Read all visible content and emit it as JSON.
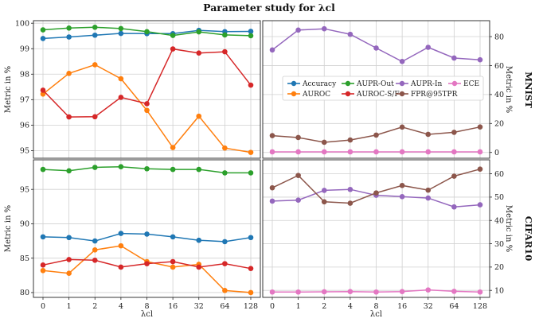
{
  "title": "Parameter study for λcl",
  "row_labels": [
    "MNIST",
    "CIFAR10"
  ],
  "chart_data": [
    {
      "type": "line",
      "panel": "MNIST-left",
      "title": "Parameter study for λcl",
      "xlabel": "",
      "ylabel": "Metric in %",
      "categories": [
        "0",
        "1",
        "2",
        "4",
        "8",
        "16",
        "32",
        "64",
        "128"
      ],
      "ylim": [
        94.7,
        100.1
      ],
      "yticks": [
        95,
        96,
        97,
        98,
        99,
        100
      ],
      "grid": true,
      "series": [
        {
          "name": "Accuracy",
          "color": "#1f77b4",
          "values": [
            99.4,
            99.46,
            99.53,
            99.6,
            99.59,
            99.59,
            99.72,
            99.67,
            99.68
          ]
        },
        {
          "name": "AUPR-Out",
          "color": "#2ca02c",
          "values": [
            99.74,
            99.81,
            99.84,
            99.79,
            99.67,
            99.52,
            99.66,
            99.54,
            99.51
          ]
        },
        {
          "name": "AUROC",
          "color": "#ff7f0e",
          "values": [
            97.22,
            98.03,
            98.37,
            97.82,
            96.58,
            95.12,
            96.35,
            95.1,
            94.93
          ]
        },
        {
          "name": "AUROC-S/F",
          "color": "#d62728",
          "values": [
            97.37,
            96.32,
            96.33,
            97.09,
            96.84,
            98.99,
            98.83,
            98.88,
            97.57
          ]
        }
      ]
    },
    {
      "type": "line",
      "panel": "MNIST-right",
      "xlabel": "",
      "ylabel": "Metric in %",
      "categories": [
        "0",
        "1",
        "2",
        "4",
        "8",
        "16",
        "32",
        "64",
        "128"
      ],
      "ylim": [
        -4,
        91
      ],
      "yticks": [
        0,
        20,
        40,
        60,
        80
      ],
      "grid": true,
      "legend": "center",
      "series": [
        {
          "name": "AUPR-In",
          "color": "#9467bd",
          "values": [
            70.8,
            84.5,
            85.4,
            81.6,
            72.1,
            62.8,
            72.6,
            65.2,
            64.0
          ]
        },
        {
          "name": "ECE",
          "color": "#e377c2",
          "values": [
            0.4,
            0.4,
            0.4,
            0.4,
            0.4,
            0.4,
            0.4,
            0.4,
            0.4
          ]
        },
        {
          "name": "FPR@95TPR",
          "color": "#8c564b",
          "values": [
            11.6,
            10.3,
            7.0,
            8.6,
            12.0,
            17.5,
            12.5,
            13.9,
            17.6
          ]
        }
      ]
    },
    {
      "type": "line",
      "panel": "CIFAR10-left",
      "xlabel": "λcl",
      "ylabel": "Metric in %",
      "categories": [
        "0",
        "1",
        "2",
        "4",
        "8",
        "16",
        "32",
        "64",
        "128"
      ],
      "ylim": [
        79.3,
        99.3
      ],
      "yticks": [
        80,
        85,
        90,
        95
      ],
      "grid": true,
      "series": [
        {
          "name": "Accuracy",
          "color": "#1f77b4",
          "values": [
            88.1,
            88.0,
            87.5,
            88.6,
            88.5,
            88.1,
            87.6,
            87.4,
            88.0
          ]
        },
        {
          "name": "AUPR-Out",
          "color": "#2ca02c",
          "values": [
            97.9,
            97.7,
            98.2,
            98.3,
            98.0,
            97.9,
            97.9,
            97.4,
            97.4
          ]
        },
        {
          "name": "AUROC",
          "color": "#ff7f0e",
          "values": [
            83.2,
            82.8,
            86.2,
            86.8,
            84.5,
            83.7,
            84.1,
            80.3,
            80.0
          ]
        },
        {
          "name": "AUROC-S/F",
          "color": "#d62728",
          "values": [
            84.0,
            84.8,
            84.7,
            83.7,
            84.2,
            84.5,
            83.7,
            84.2,
            83.5
          ]
        }
      ]
    },
    {
      "type": "line",
      "panel": "CIFAR10-right",
      "xlabel": "λcl",
      "ylabel": "Metric in %",
      "categories": [
        "0",
        "1",
        "2",
        "4",
        "8",
        "16",
        "32",
        "64",
        "128"
      ],
      "ylim": [
        7,
        66
      ],
      "yticks": [
        10,
        20,
        30,
        40,
        50,
        60
      ],
      "grid": true,
      "series": [
        {
          "name": "AUPR-In",
          "color": "#9467bd",
          "values": [
            48.3,
            48.7,
            52.9,
            53.3,
            50.8,
            50.2,
            49.6,
            45.8,
            46.7
          ]
        },
        {
          "name": "ECE",
          "color": "#e377c2",
          "values": [
            9.3,
            9.3,
            9.4,
            9.5,
            9.3,
            9.5,
            10.2,
            9.6,
            9.3
          ]
        },
        {
          "name": "FPR@95TPR",
          "color": "#8c564b",
          "values": [
            54.0,
            59.3,
            48.0,
            47.4,
            51.8,
            55.0,
            53.0,
            59.0,
            62.0
          ]
        }
      ]
    }
  ],
  "legend": {
    "entries": [
      {
        "name": "Accuracy",
        "color": "#1f77b4"
      },
      {
        "name": "AUPR-Out",
        "color": "#2ca02c"
      },
      {
        "name": "AUPR-In",
        "color": "#9467bd"
      },
      {
        "name": "ECE",
        "color": "#e377c2"
      },
      {
        "name": "AUROC",
        "color": "#ff7f0e"
      },
      {
        "name": "AUROC-S/F",
        "color": "#d62728"
      },
      {
        "name": "FPR@95TPR",
        "color": "#8c564b"
      }
    ]
  }
}
